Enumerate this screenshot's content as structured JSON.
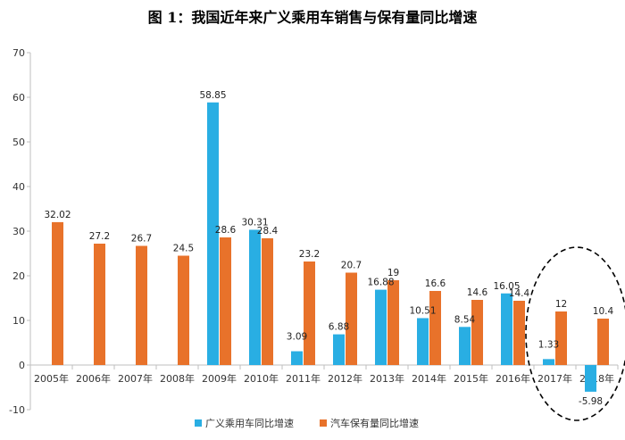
{
  "title": "图 1：我国近年来广义乘用车销售与保有量同比增速",
  "colors": {
    "series1": "#29AEE3",
    "series2": "#E8722A",
    "axis": "#BFBFBF"
  },
  "chart_data": {
    "type": "bar",
    "title": "图 1：我国近年来广义乘用车销售与保有量同比增速",
    "categories": [
      "2005年",
      "2006年",
      "2007年",
      "2008年",
      "2009年",
      "2010年",
      "2011年",
      "2012年",
      "2013年",
      "2014年",
      "2015年",
      "2016年",
      "2017年",
      "2018年"
    ],
    "series": [
      {
        "name": "广义乘用车同比增速",
        "values": [
          null,
          null,
          null,
          null,
          58.85,
          30.31,
          3.09,
          6.88,
          16.88,
          10.51,
          8.54,
          16.05,
          1.33,
          -5.98
        ]
      },
      {
        "name": "汽车保有量同比增速",
        "values": [
          32.02,
          27.2,
          26.7,
          24.5,
          28.6,
          28.4,
          23.2,
          20.7,
          19,
          16.6,
          14.6,
          14.4,
          12,
          10.4
        ]
      }
    ],
    "value_labels": [
      [
        "",
        "",
        "",
        "",
        "58.85",
        "30.31",
        "3.09",
        "6.88",
        "16.88",
        "10.51",
        "8.54",
        "16.05",
        "1.33",
        "-5.98"
      ],
      [
        "32.02",
        "27.2",
        "26.7",
        "24.5",
        "28.6",
        "28.4",
        "23.2",
        "20.7",
        "19",
        "16.6",
        "14.6",
        "14.4",
        "12",
        "10.4"
      ]
    ],
    "yticks": [
      "70",
      "60",
      "50",
      "40",
      "30",
      "20",
      "10",
      "0",
      "-10"
    ],
    "ylim": [
      -10,
      70
    ],
    "legend_position": "bottom",
    "annotation": "dashed ellipse highlighting 2017年 and 2018年"
  }
}
